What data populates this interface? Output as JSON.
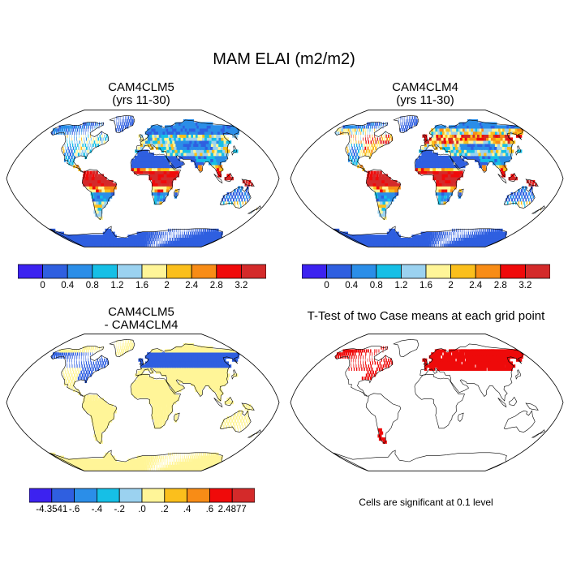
{
  "title": "MAM ELAI (m2/m2)",
  "palette": {
    "abs": [
      "#3c22f0",
      "#2f5fe0",
      "#2b8ee8",
      "#16bfe6",
      "#9bd2f0",
      "#fff598",
      "#fbbf1c",
      "#f88c16",
      "#f00a0a",
      "#d42a2a"
    ],
    "diff": [
      "#3c22f0",
      "#2f5fe0",
      "#2b8ee8",
      "#16bfe6",
      "#9bd2f0",
      "#fff598",
      "#fbbf1c",
      "#f88c16",
      "#f00a0a",
      "#d42a2a"
    ],
    "ttest": "#ee0a0a",
    "ocean": "#ffffff",
    "coast": "#000000"
  },
  "panels": {
    "clm5": {
      "title_line1": "CAM4CLM5",
      "title_line2": "(yrs 11-30)",
      "colorbar_ticks": [
        "0",
        "0.4",
        "0.8",
        "1.2",
        "1.6",
        "2",
        "2.4",
        "2.8",
        "3.2"
      ]
    },
    "clm4": {
      "title_line1": "CAM4CLM4",
      "title_line2": "(yrs 11-30)",
      "colorbar_ticks": [
        "0",
        "0.4",
        "0.8",
        "1.2",
        "1.6",
        "2",
        "2.4",
        "2.8",
        "3.2"
      ]
    },
    "diff": {
      "title_line1": "CAM4CLM5",
      "title_line2": "- CAM4CLM4",
      "colorbar_ticks": [
        "-4.3541",
        "-.6",
        "-.4",
        "-.2",
        ".0",
        ".2",
        ".4",
        ".6",
        "2.4877"
      ]
    },
    "ttest": {
      "title": "T-Test of two Case means at each grid point",
      "note": "Cells are significant at 0.1 level"
    }
  }
}
